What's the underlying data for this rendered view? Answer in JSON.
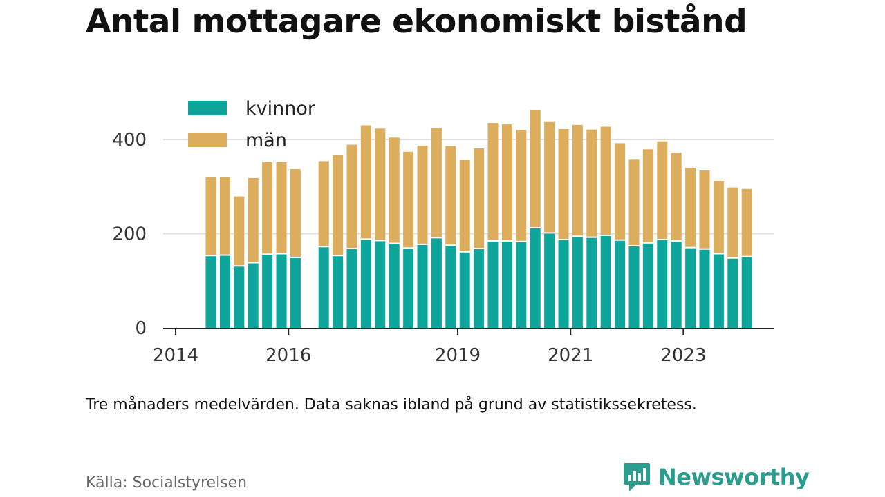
{
  "title": "Antal mottagare ekonomiskt bistånd",
  "note": "Tre månaders medelvärden. Data saknas ibland på grund av statistikssekretess.",
  "source": "Källa: Socialstyrelsen",
  "brand": {
    "name": "Newsworthy",
    "icon": "newsworthy-logo-icon"
  },
  "colors": {
    "kvinnor": "#0ea69a",
    "man": "#dcad5c",
    "grid": "#dddddd",
    "axis": "#222222",
    "brand": "#2a9d8f"
  },
  "chart_data": {
    "type": "bar",
    "stacked": true,
    "title": "Antal mottagare ekonomiskt bistånd",
    "xlabel": "",
    "ylabel": "",
    "ylim": [
      0,
      480
    ],
    "yticks": [
      0,
      200,
      400
    ],
    "xticks": [
      "2014",
      "2016",
      "2019",
      "2021",
      "2023"
    ],
    "grid": true,
    "legend": "top-left",
    "x": [
      "2014-Q2",
      "2014-Q3",
      "2014-Q4",
      "2015-Q1",
      "2015-Q2",
      "2015-Q3",
      "2015-Q4",
      "2016-Q1",
      "2016-Q2",
      "2016-Q3",
      "2016-Q4",
      "2017-Q1",
      "2017-Q2",
      "2017-Q3",
      "2017-Q4",
      "2018-Q1",
      "2018-Q2",
      "2018-Q3",
      "2018-Q4",
      "2019-Q1",
      "2019-Q2",
      "2019-Q3",
      "2019-Q4",
      "2020-Q1",
      "2020-Q2",
      "2020-Q3",
      "2020-Q4",
      "2021-Q1",
      "2021-Q2",
      "2021-Q3",
      "2021-Q4",
      "2022-Q1",
      "2022-Q2",
      "2022-Q3",
      "2022-Q4",
      "2023-Q1",
      "2023-Q2",
      "2023-Q3",
      "2023-Q4"
    ],
    "series": [
      {
        "name": "kvinnor",
        "values": [
          152,
          153,
          130,
          137,
          155,
          156,
          148,
          null,
          171,
          152,
          167,
          187,
          184,
          178,
          168,
          176,
          190,
          174,
          160,
          167,
          183,
          183,
          182,
          211,
          200,
          186,
          193,
          191,
          195,
          185,
          173,
          179,
          186,
          183,
          169,
          166,
          156,
          147,
          150
        ]
      },
      {
        "name": "män",
        "values": [
          168,
          167,
          149,
          181,
          197,
          196,
          189,
          null,
          183,
          215,
          222,
          243,
          239,
          226,
          206,
          211,
          234,
          212,
          196,
          214,
          252,
          249,
          238,
          251,
          237,
          236,
          238,
          230,
          232,
          207,
          184,
          200,
          210,
          189,
          171,
          168,
          156,
          151,
          145
        ]
      }
    ]
  }
}
